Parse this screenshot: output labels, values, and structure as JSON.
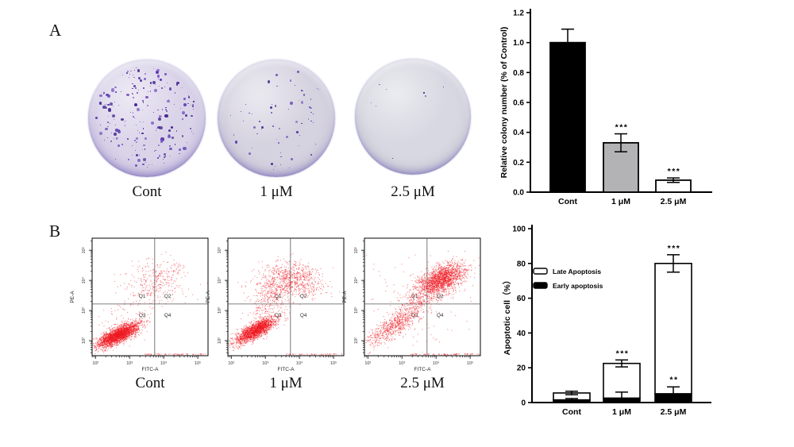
{
  "panelA": {
    "label": "A",
    "dishes": [
      {
        "label": "Cont",
        "colony_count": 210,
        "inner": "#dad4e9",
        "mid": "#cdc5e1",
        "edge": "#a89fd5",
        "dot_colors": [
          "#5a36ad",
          "#7a57c2",
          "#47278f"
        ],
        "dot_scale": 1.0
      },
      {
        "label": "1 μM",
        "colony_count": 62,
        "inner": "#d6d3e0",
        "mid": "#ccc8d9",
        "edge": "#aba6ca",
        "dot_colors": [
          "#5e3cae",
          "#8066c0",
          "#4a2d96"
        ],
        "dot_scale": 0.85
      },
      {
        "label": "2.5 μM",
        "colony_count": 8,
        "inner": "#d7d8e1",
        "mid": "#ceced9",
        "edge": "#aeafc8",
        "dot_colors": [
          "#5e3cae",
          "#6a4cb4",
          "#3f2587"
        ],
        "dot_scale": 0.7
      }
    ]
  },
  "panelB": {
    "label": "B",
    "flow_labels": [
      "Cont",
      "1 μM",
      "2.5 μM"
    ]
  },
  "chart_data": [
    {
      "id": "colony-bar-chart",
      "type": "bar",
      "title": "",
      "ylabel": "Relative colony number (% of Control)",
      "xlabel": "",
      "categories": [
        "Cont",
        "1 μM",
        "2.5 μM"
      ],
      "values": [
        1.0,
        0.33,
        0.08
      ],
      "errors": [
        0.09,
        0.06,
        0.015
      ],
      "bar_colors": [
        "#000000",
        "#b3b3b6",
        "#ffffff"
      ],
      "significance": [
        "",
        "***",
        "***"
      ],
      "ylim": [
        0,
        1.2
      ],
      "yticks": [
        0,
        0.2,
        0.4,
        0.6,
        0.8,
        1.0,
        1.2
      ],
      "ytick_labels": [
        "0.0",
        "0.2",
        "0.4",
        "0.6",
        "0.8",
        "1.0",
        "1.2"
      ],
      "grid": false
    },
    {
      "id": "apoptosis-stacked-chart",
      "type": "stacked-bar",
      "title": "",
      "ylabel": "Apoptotic cell（%）",
      "xlabel": "",
      "categories": [
        "Cont",
        "1 μM",
        "2.5 μM"
      ],
      "series": [
        {
          "name": "Early apoptosis",
          "color": "#000000",
          "values": [
            1.5,
            2.5,
            5.0
          ],
          "errors": [
            0.8,
            3.5,
            4.0
          ],
          "significance": [
            "",
            "",
            "**"
          ]
        },
        {
          "name": "Late Apoptosis",
          "color": "#ffffff",
          "values": [
            4.0,
            20.0,
            75.0
          ]
        }
      ],
      "totals": [
        5.5,
        22.5,
        80.0
      ],
      "total_errors": [
        1.0,
        2.0,
        5.0
      ],
      "total_significance": [
        "",
        "***",
        "***"
      ],
      "ylim": [
        0,
        100
      ],
      "yticks": [
        0,
        20,
        40,
        60,
        80,
        100
      ],
      "ytick_labels": [
        "0",
        "20",
        "40",
        "60",
        "80",
        "100"
      ],
      "legend": [
        {
          "label": "Late Apoptosis",
          "fill": "#ffffff"
        },
        {
          "label": "Early apoptosis",
          "fill": "#000000"
        }
      ],
      "legend_position": "upper-left-inside",
      "grid": false
    },
    {
      "id": "flow-cytometry",
      "type": "scatter",
      "xlabel": "FITC-A",
      "ylabel": "PE-A",
      "x_scale": "log",
      "y_scale": "log",
      "xlog_range": [
        1.9,
        5.3
      ],
      "ylog_range": [
        1.5,
        5.4
      ],
      "x_tick_labels": [
        "10²",
        "10³",
        "10⁴",
        "10⁵"
      ],
      "y_tick_labels": [
        "10²",
        "10³",
        "10⁴",
        "10⁵"
      ],
      "tick_decades": [
        2,
        3,
        4,
        5
      ],
      "quadrant_labels": [
        "Q1",
        "Q2",
        "Q3",
        "Q4"
      ],
      "quadrant_x_frac": 0.54,
      "quadrant_y_frac": 0.56,
      "point_color": "rgba(240,24,32,0.5)",
      "plots": [
        {
          "label": "Cont",
          "seed": 11,
          "clusters": [
            {
              "n": 2600,
              "cx": 2.65,
              "cy": 2.2,
              "sx": 0.3,
              "sy": 0.2,
              "rho": 0.75
            },
            {
              "n": 300,
              "cx": 3.85,
              "cy": 4.0,
              "sx": 0.45,
              "sy": 0.35,
              "rho": 0.1
            },
            {
              "n": 130,
              "cx": 3.1,
              "cy": 3.0,
              "sx": 0.5,
              "sy": 0.6,
              "rho": 0.3
            },
            {
              "n": 60,
              "bottom": true,
              "x0": 3.4,
              "x1": 5.25
            }
          ]
        },
        {
          "label": "1 μM",
          "seed": 22,
          "clusters": [
            {
              "n": 2000,
              "cx": 2.7,
              "cy": 2.35,
              "sx": 0.3,
              "sy": 0.22,
              "rho": 0.8
            },
            {
              "n": 420,
              "cx": 3.35,
              "cy": 3.95,
              "sx": 0.38,
              "sy": 0.33,
              "rho": 0.2
            },
            {
              "n": 420,
              "cx": 4.05,
              "cy": 4.05,
              "sx": 0.38,
              "sy": 0.3,
              "rho": -0.2
            },
            {
              "n": 260,
              "cx": 3.1,
              "cy": 3.2,
              "sx": 0.35,
              "sy": 0.45,
              "rho": 0.6
            },
            {
              "n": 50,
              "bottom": true,
              "x0": 3.6,
              "x1": 5.25
            }
          ]
        },
        {
          "label": "2.5 μM",
          "seed": 33,
          "clusters": [
            {
              "n": 1800,
              "cx": 4.15,
              "cy": 4.05,
              "sx": 0.34,
              "sy": 0.26,
              "rho": 0.5
            },
            {
              "n": 700,
              "cx": 2.75,
              "cy": 2.5,
              "sx": 0.4,
              "sy": 0.34,
              "rho": 0.8
            },
            {
              "n": 260,
              "cx": 3.5,
              "cy": 3.4,
              "sx": 0.32,
              "sy": 0.32,
              "rho": 0.6
            },
            {
              "n": 120,
              "cx": 3.6,
              "cy": 3.4,
              "sx": 0.8,
              "sy": 0.9,
              "rho": 0.2
            },
            {
              "n": 70,
              "bottom": true,
              "x0": 3.2,
              "x1": 5.25
            }
          ]
        }
      ]
    }
  ]
}
